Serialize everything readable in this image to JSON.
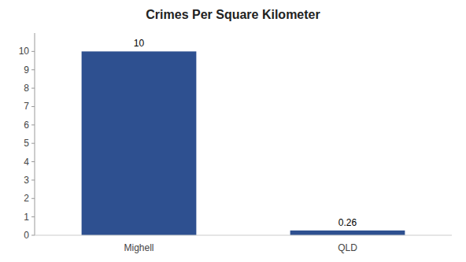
{
  "chart_data": {
    "type": "bar",
    "title": "Crimes Per Square Kilometer",
    "categories": [
      "Mighell",
      "QLD"
    ],
    "values": [
      10,
      0.26
    ],
    "color": "#2e5090",
    "ylim": [
      0,
      11
    ],
    "yticks": [
      0,
      1,
      2,
      3,
      4,
      5,
      6,
      7,
      8,
      9,
      10
    ],
    "grid": false,
    "data_labels": true
  }
}
